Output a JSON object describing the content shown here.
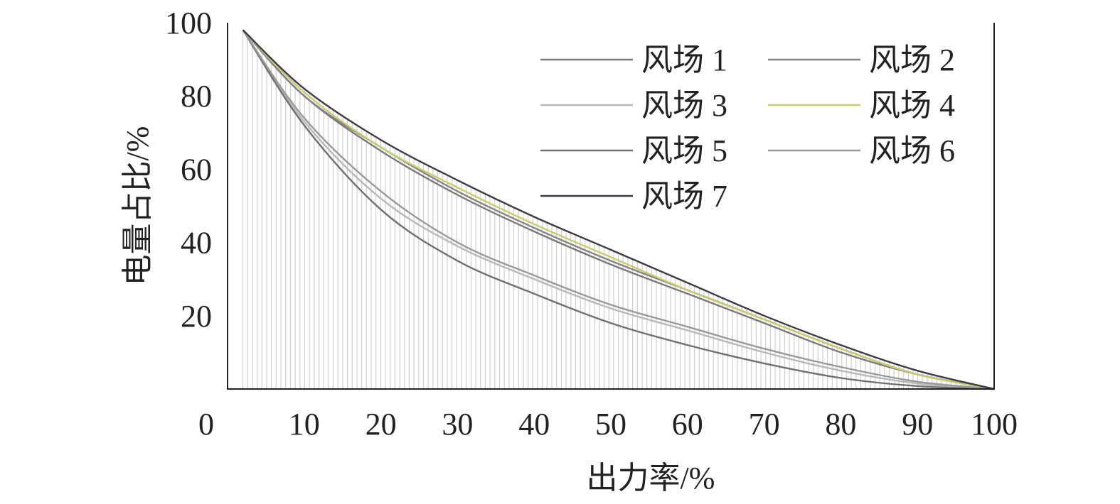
{
  "chart_data": {
    "type": "line",
    "title": "",
    "xlabel": "出力率/%",
    "ylabel": "电量占比/%",
    "xlim": [
      0,
      100
    ],
    "ylim": [
      0,
      100
    ],
    "x_ticks": [
      "0",
      "10",
      "20",
      "30",
      "40",
      "50",
      "60",
      "70",
      "80",
      "90",
      "100"
    ],
    "y_ticks": [
      "20",
      "40",
      "60",
      "80",
      "100"
    ],
    "grid": false,
    "legend_position": "top-right",
    "background_fill": "vertical hatch under curves",
    "x": [
      0,
      2,
      10,
      20,
      30,
      40,
      50,
      60,
      70,
      80,
      90,
      100
    ],
    "series": [
      {
        "name": "风场 1",
        "color": "#7a7a7a",
        "values": [
          98,
          98,
          80,
          65,
          53,
          43,
          34,
          26,
          18,
          10,
          4,
          0
        ]
      },
      {
        "name": "风场 2",
        "color": "#858585",
        "values": [
          98,
          98,
          80,
          66,
          54,
          44,
          35,
          27,
          19,
          11,
          4,
          0
        ]
      },
      {
        "name": "风场 3",
        "color": "#b8b8b8",
        "values": [
          98,
          98,
          73,
          52,
          39,
          30,
          22,
          16,
          10,
          5,
          1.5,
          0
        ]
      },
      {
        "name": "风场 4",
        "color": "#c8cc6a",
        "values": [
          98,
          98,
          81,
          66,
          55,
          45,
          36,
          27,
          19,
          11,
          4,
          0
        ]
      },
      {
        "name": "风场 5",
        "color": "#707070",
        "values": [
          98,
          98,
          72,
          49,
          35,
          26,
          18,
          12,
          7,
          3,
          0.8,
          0
        ]
      },
      {
        "name": "风场 6",
        "color": "#9a9a9a",
        "values": [
          98,
          98,
          74,
          54,
          40,
          31,
          23,
          17,
          11,
          6,
          2,
          0
        ]
      },
      {
        "name": "风场 7",
        "color": "#3c3c46",
        "values": [
          98,
          98,
          82,
          68,
          57,
          47,
          38,
          29,
          20,
          12,
          5,
          0
        ]
      }
    ]
  }
}
